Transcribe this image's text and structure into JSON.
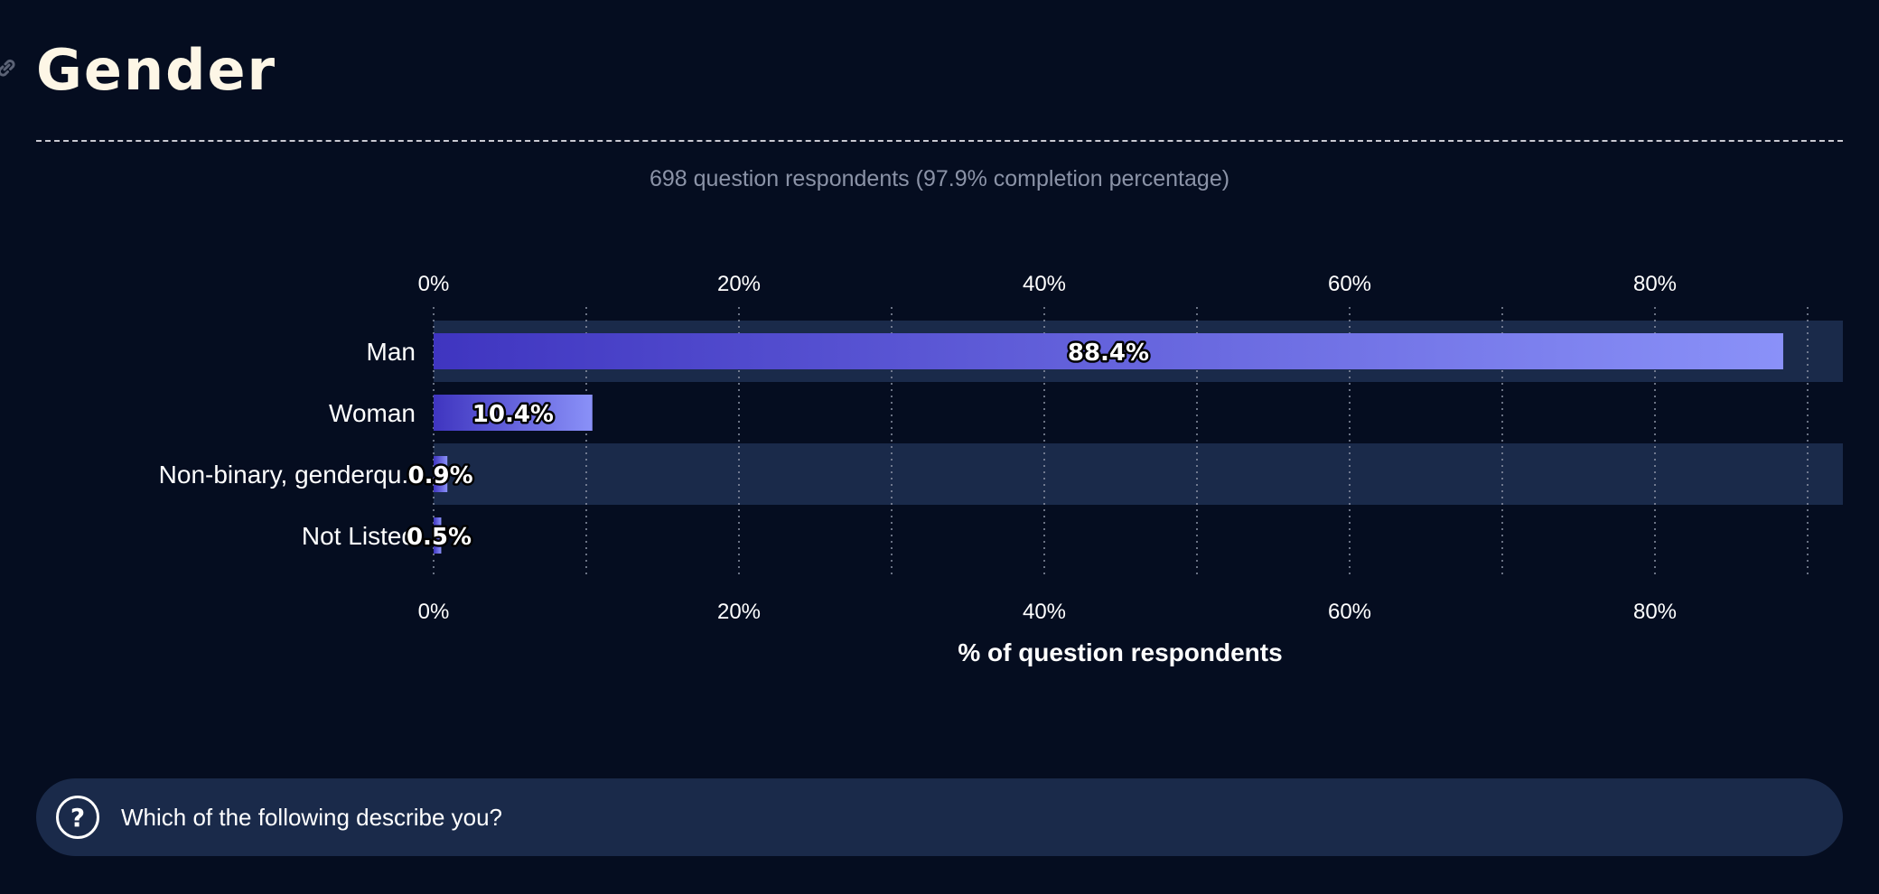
{
  "page": {
    "title": "Gender",
    "subtitle": "698 question respondents (97.9% completion percentage)",
    "question": "Which of the following describe you?"
  },
  "icons": {
    "anchor": "link-icon",
    "question": "question-circle-icon"
  },
  "colors": {
    "background": "#050d20",
    "row_band": "#1a2a4a",
    "bar_start": "#3f35c0",
    "bar_end": "#8a91f8",
    "title": "#fdf6e6"
  },
  "chart_data": {
    "type": "bar",
    "orientation": "horizontal",
    "categories": [
      "Man",
      "Woman",
      "Non-binary, genderqu…",
      "Not Listed"
    ],
    "category_display": [
      "Man",
      "Woman",
      "Non-binary, genderqu..",
      "Not Listed"
    ],
    "values": [
      88.4,
      10.4,
      0.9,
      0.5
    ],
    "value_labels": [
      "88.4%",
      "10.4%",
      "0.9%",
      "0.5%"
    ],
    "xlabel": "% of question respondents",
    "xlim": [
      0,
      92.3
    ],
    "xticks": [
      0,
      20,
      40,
      60,
      80
    ],
    "xtick_labels": [
      "0%",
      "20%",
      "40%",
      "60%",
      "80%"
    ],
    "minor_gridlines": [
      10,
      30,
      50,
      70,
      90
    ],
    "grid": true,
    "axis_labels_top_and_bottom": true
  }
}
